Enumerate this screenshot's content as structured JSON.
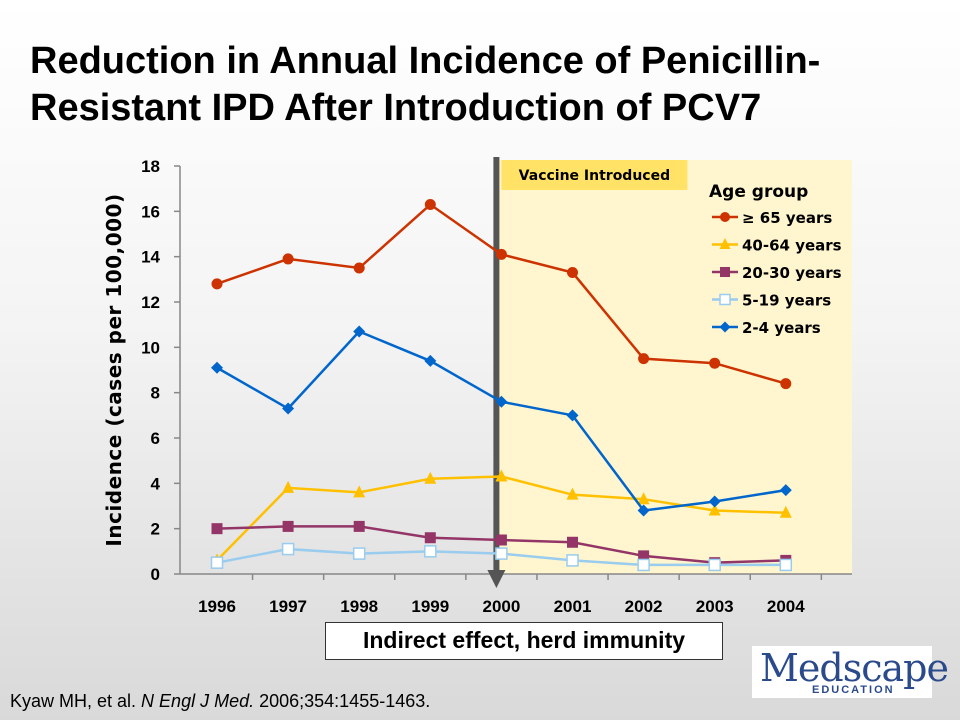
{
  "title_line1": "Reduction in Annual Incidence of Penicillin-",
  "title_line2": "Resistant IPD After Introduction of PCV7",
  "callout": "Indirect effect, herd immunity",
  "citation": {
    "authors": "Kyaw MH, et al. ",
    "journal": "N Engl J Med.",
    "details": " 2006;354:1455-1463."
  },
  "logo": {
    "main_initial": "M",
    "main_rest": "edscape",
    "sub": "EDUCATION"
  },
  "colors": {
    "shade": "#fff6cf",
    "marker_line": "#555555",
    "banner": "#ffe266"
  },
  "chart_data": {
    "type": "line",
    "title": "",
    "xlabel": "",
    "ylabel": "Incidence (cases per 100,000)",
    "ylim": [
      0,
      18
    ],
    "yticks": [
      0,
      2,
      4,
      6,
      8,
      10,
      12,
      14,
      16,
      18
    ],
    "categories": [
      "1996",
      "1997",
      "1998",
      "1999",
      "2000",
      "2001",
      "2002",
      "2003",
      "2004"
    ],
    "annotation": "Vaccine Introduced",
    "vaccine_year": "2000",
    "legend_title": "Age group",
    "legend_position": "top-right",
    "series": [
      {
        "name": "≥ 65 years",
        "color": "#cc3300",
        "marker": "circle",
        "values": [
          12.8,
          13.9,
          13.5,
          16.3,
          14.1,
          13.3,
          9.5,
          9.3,
          8.4
        ]
      },
      {
        "name": "40-64 years",
        "color": "#ffc000",
        "marker": "triangle",
        "values": [
          0.6,
          3.8,
          3.6,
          4.2,
          4.3,
          3.5,
          3.3,
          2.8,
          2.7
        ]
      },
      {
        "name": "20-30 years",
        "color": "#943567",
        "marker": "square",
        "values": [
          2.0,
          2.1,
          2.1,
          1.6,
          1.5,
          1.4,
          0.8,
          0.5,
          0.6
        ]
      },
      {
        "name": "5-19 years",
        "color": "#99ccee",
        "marker": "open-square",
        "values": [
          0.5,
          1.1,
          0.9,
          1.0,
          0.9,
          0.6,
          0.4,
          0.4,
          0.4
        ]
      },
      {
        "name": "2-4 years",
        "color": "#0066cc",
        "marker": "diamond",
        "values": [
          9.1,
          7.3,
          10.7,
          9.4,
          7.6,
          7.0,
          2.8,
          3.2,
          3.7
        ]
      }
    ]
  }
}
